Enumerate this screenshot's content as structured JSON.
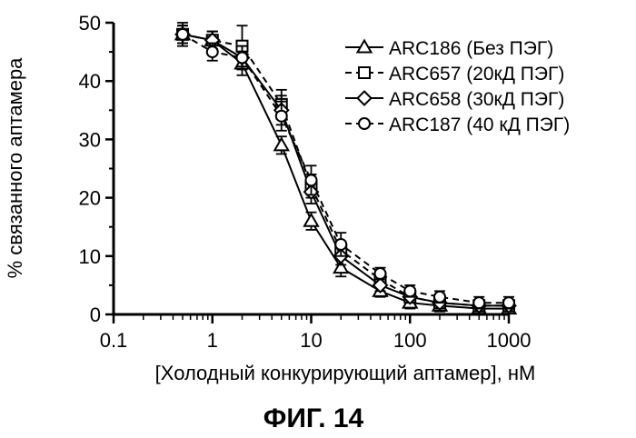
{
  "figure_caption": "ФИГ. 14",
  "chart_data": {
    "type": "line",
    "title": "",
    "xlabel": "[Холодный конкурирующий аптамер], нМ",
    "ylabel": "% связанного аптамера",
    "x_scale": "log",
    "xlim": [
      0.1,
      1000
    ],
    "ylim": [
      0,
      50
    ],
    "x_ticks": [
      0.1,
      1,
      10,
      100,
      1000
    ],
    "x_tick_labels": [
      "0.1",
      "1",
      "10",
      "100",
      "1000"
    ],
    "y_ticks": [
      0,
      10,
      20,
      30,
      40,
      50
    ],
    "y_tick_labels": [
      "0",
      "10",
      "20",
      "30",
      "40",
      "50"
    ],
    "grid": false,
    "legend_position": "top-right",
    "x": [
      0.5,
      1,
      2,
      5,
      10,
      20,
      50,
      100,
      200,
      500,
      1000
    ],
    "series": [
      {
        "name": "ARC186 (Без ПЭГ)",
        "marker": "triangle",
        "line_style": "solid",
        "values": [
          48,
          47,
          43,
          29,
          16,
          8,
          4,
          2,
          1.5,
          1,
          1
        ],
        "errors": [
          1.5,
          1.5,
          2,
          1.5,
          1.5,
          1.5,
          1,
          1,
          1,
          1,
          0.5
        ]
      },
      {
        "name": "ARC657 (20кД ПЭГ)",
        "marker": "square",
        "line_style": "dashed",
        "values": [
          48,
          47,
          46,
          36,
          22,
          11,
          6,
          3,
          2,
          1.5,
          1.5
        ],
        "errors": [
          2,
          1.5,
          3.5,
          2.5,
          2,
          1.5,
          1,
          1,
          1,
          1,
          1
        ]
      },
      {
        "name": "ARC658 (30кД ПЭГ)",
        "marker": "diamond",
        "line_style": "solid",
        "values": [
          48,
          47,
          44,
          35,
          21,
          10,
          5,
          3,
          2,
          1.5,
          1.5
        ],
        "errors": [
          1.5,
          1.5,
          2,
          2.5,
          2,
          1.5,
          1,
          1,
          1,
          1,
          1
        ]
      },
      {
        "name": "ARC187 (40 кД ПЭГ)",
        "marker": "circle",
        "line_style": "dashed",
        "values": [
          48,
          45,
          44,
          34,
          23,
          12,
          7,
          4,
          3,
          2,
          2
        ],
        "errors": [
          1.5,
          1.5,
          2,
          2.5,
          2.5,
          2,
          1,
          1,
          1,
          1,
          1
        ]
      }
    ]
  }
}
